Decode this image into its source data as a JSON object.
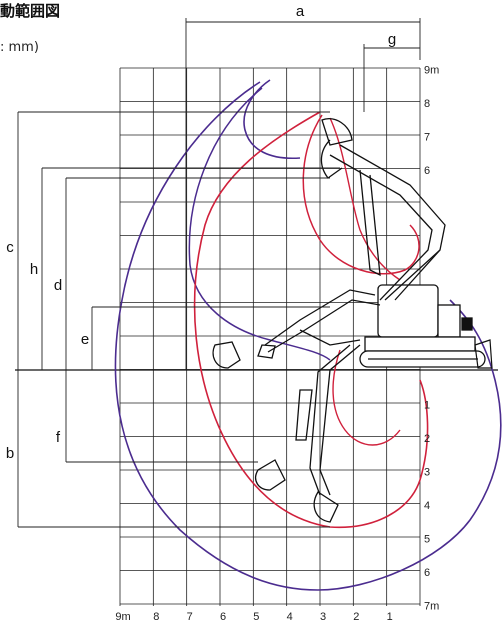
{
  "title": "動範囲図",
  "unit_note": ": mm)",
  "x_ticks": [
    "9m",
    "8",
    "7",
    "6",
    "5",
    "4",
    "3",
    "2",
    "1"
  ],
  "y_ticks_up": [
    "9m",
    "8",
    "7",
    "6"
  ],
  "y_ticks_down": [
    "1",
    "2",
    "3",
    "4",
    "5",
    "6",
    "7m"
  ],
  "dimensions": [
    "a",
    "g",
    "c",
    "h",
    "d",
    "e",
    "b",
    "f"
  ],
  "colors": {
    "outer_envelope": "#4b2c8f",
    "inner_envelope": "#d0213c",
    "grid": "#222222"
  }
}
